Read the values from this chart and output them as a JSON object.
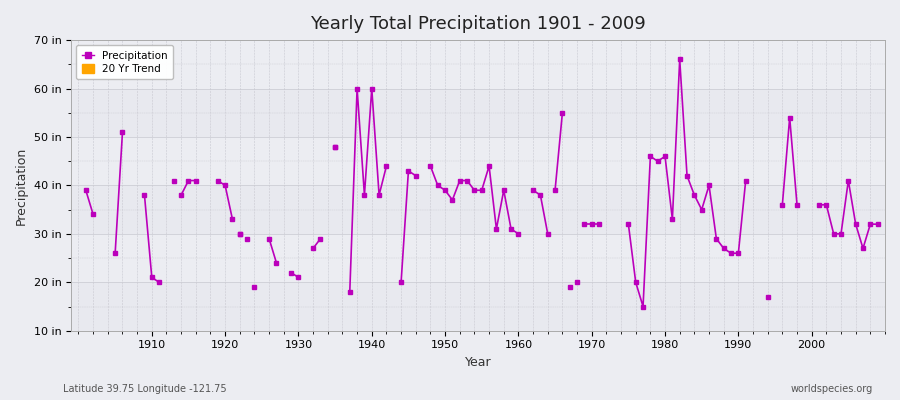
{
  "title": "Yearly Total Precipitation 1901 - 2009",
  "xlabel": "Year",
  "ylabel": "Precipitation",
  "lat_lon_label": "Latitude 39.75 Longitude -121.75",
  "source_label": "worldspecies.org",
  "line_color": "#BB00BB",
  "trend_color": "#FFA500",
  "bg_color": "#ECEDF2",
  "plot_bg_color": "#ECEDF2",
  "grid_color": "#C8C8D0",
  "ylim": [
    10,
    70
  ],
  "ytick_labels": [
    "10 in",
    "20 in",
    "30 in",
    "40 in",
    "50 in",
    "60 in",
    "70 in"
  ],
  "ytick_values": [
    10,
    20,
    30,
    40,
    50,
    60,
    70
  ],
  "years": [
    1901,
    1902,
    1905,
    1906,
    1909,
    1910,
    1911,
    1914,
    1915,
    1916,
    1919,
    1920,
    1921,
    1913,
    1922,
    1924,
    1926,
    1927,
    1929,
    1930,
    1923,
    1932,
    1933,
    1935,
    1937,
    1938,
    1939,
    1940,
    1941,
    1942,
    1944,
    1945,
    1946,
    1948,
    1949,
    1950,
    1951,
    1952,
    1953,
    1954,
    1955,
    1956,
    1957,
    1958,
    1959,
    1960,
    1962,
    1963,
    1964,
    1966,
    1965,
    1967,
    1968,
    1969,
    1970,
    1971,
    1975,
    1976,
    1977,
    1978,
    1979,
    1980,
    1981,
    1982,
    1983,
    1984,
    1985,
    1986,
    1987,
    1988,
    1989,
    1990,
    1991,
    1994,
    1996,
    1997,
    1998,
    2001,
    2002,
    2003,
    2004,
    2005,
    2006,
    2007,
    2008,
    2009
  ],
  "precip": [
    39,
    34,
    26,
    51,
    38,
    21,
    20,
    38,
    41,
    41,
    41,
    40,
    33,
    41,
    30,
    19,
    29,
    24,
    22,
    21,
    29,
    27,
    29,
    48,
    18,
    60,
    38,
    60,
    38,
    44,
    20,
    43,
    42,
    44,
    40,
    39,
    37,
    41,
    41,
    39,
    39,
    44,
    31,
    39,
    31,
    30,
    39,
    38,
    30,
    55,
    39,
    19,
    20,
    32,
    32,
    32,
    32,
    20,
    15,
    46,
    45,
    46,
    33,
    66,
    42,
    38,
    35,
    40,
    29,
    27,
    26,
    26,
    41,
    17,
    36,
    54,
    36,
    36,
    36,
    30,
    30,
    41,
    32,
    27,
    32,
    32
  ],
  "segments": [
    [
      1901,
      1902
    ],
    [
      1905,
      1906
    ],
    [
      1909,
      1910,
      1911
    ],
    [
      1914,
      1915,
      1916
    ],
    [
      1919,
      1920,
      1921
    ],
    [
      1922
    ],
    [
      1926,
      1927
    ],
    [
      1929,
      1930
    ],
    [
      1932,
      1933
    ],
    [
      1935
    ],
    [
      1937,
      1938,
      1939,
      1940,
      1941,
      1942
    ],
    [
      1944,
      1945,
      1946
    ],
    [
      1948,
      1949,
      1950,
      1951,
      1952,
      1953,
      1954,
      1955,
      1956,
      1957,
      1958,
      1959,
      1960
    ],
    [
      1962,
      1963,
      1964
    ],
    [
      1965,
      1966
    ],
    [
      1969,
      1970,
      1971
    ],
    [
      1975,
      1976,
      1977,
      1978,
      1979,
      1980,
      1981,
      1982,
      1983,
      1984,
      1985,
      1986,
      1987,
      1988,
      1989,
      1990,
      1991
    ],
    [
      1996,
      1997,
      1998
    ],
    [
      2001,
      2002,
      2003,
      2004,
      2005,
      2006,
      2007,
      2008,
      2009
    ]
  ]
}
